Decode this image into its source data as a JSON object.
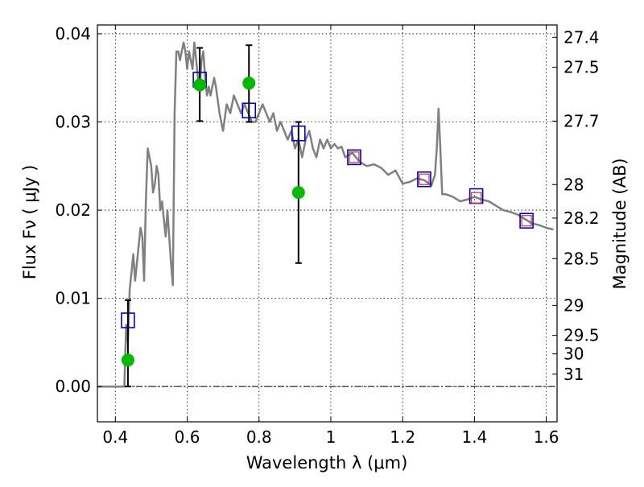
{
  "chart_data": {
    "type": "scatter",
    "title": "",
    "xlabel": "Wavelength  λ (μm)",
    "ylabel": "Flux  Fν  ( μJy )",
    "y2label": "Magnitude (AB)",
    "xlim": [
      0.35,
      1.63
    ],
    "ylim": [
      -0.004,
      0.041
    ],
    "grid": true,
    "x_ticks": [
      {
        "value": 0.4,
        "label": "0.4"
      },
      {
        "value": 0.6,
        "label": "0.6"
      },
      {
        "value": 0.8,
        "label": "0.8"
      },
      {
        "value": 1.0,
        "label": "1"
      },
      {
        "value": 1.2,
        "label": "1.2"
      },
      {
        "value": 1.4,
        "label": "1.4"
      },
      {
        "value": 1.6,
        "label": "1.6"
      }
    ],
    "y_ticks": [
      {
        "value": 0.0,
        "label": "0.00"
      },
      {
        "value": 0.01,
        "label": "0.01"
      },
      {
        "value": 0.02,
        "label": "0.02"
      },
      {
        "value": 0.03,
        "label": "0.03"
      },
      {
        "value": 0.04,
        "label": "0.04"
      }
    ],
    "y2_ticks": [
      {
        "flux": 0.0396,
        "label": "27.4"
      },
      {
        "flux": 0.0362,
        "label": "27.5"
      },
      {
        "flux": 0.0301,
        "label": "27.7"
      },
      {
        "flux": 0.0229,
        "label": "28"
      },
      {
        "flux": 0.0191,
        "label": "28.2"
      },
      {
        "flux": 0.0145,
        "label": "28.5"
      },
      {
        "flux": 0.0092,
        "label": "29"
      },
      {
        "flux": 0.0058,
        "label": "29.5"
      },
      {
        "flux": 0.0037,
        "label": "30"
      },
      {
        "flux": 0.0014,
        "label": "31"
      }
    ],
    "colors": {
      "model_line": "#808080",
      "observed_points": "#00bb00",
      "model_boxes": "#0000cc",
      "red_boxes": "#cc3333",
      "error_bars": "#000000",
      "zero_line": "#000000"
    },
    "series": [
      {
        "kind": "line",
        "x": [
          0.35,
          0.4,
          0.425,
          0.43,
          0.435,
          0.44,
          0.445,
          0.45,
          0.455,
          0.46,
          0.465,
          0.47,
          0.475,
          0.48,
          0.485,
          0.49,
          0.495,
          0.5,
          0.505,
          0.51,
          0.515,
          0.52,
          0.525,
          0.53,
          0.535,
          0.54,
          0.545,
          0.55,
          0.555,
          0.56,
          0.565,
          0.57,
          0.575,
          0.58,
          0.585,
          0.59,
          0.595,
          0.6,
          0.605,
          0.61,
          0.615,
          0.62,
          0.625,
          0.63,
          0.635,
          0.64,
          0.645,
          0.65,
          0.655,
          0.66,
          0.665,
          0.67,
          0.675,
          0.68,
          0.69,
          0.7,
          0.71,
          0.72,
          0.73,
          0.74,
          0.75,
          0.76,
          0.77,
          0.78,
          0.79,
          0.8,
          0.81,
          0.82,
          0.83,
          0.84,
          0.85,
          0.86,
          0.87,
          0.88,
          0.89,
          0.9,
          0.91,
          0.92,
          0.93,
          0.94,
          0.95,
          0.96,
          0.97,
          0.98,
          0.99,
          1.0,
          1.01,
          1.02,
          1.03,
          1.04,
          1.06,
          1.08,
          1.1,
          1.12,
          1.14,
          1.16,
          1.18,
          1.2,
          1.22,
          1.24,
          1.26,
          1.28,
          1.29,
          1.295,
          1.3,
          1.305,
          1.31,
          1.32,
          1.34,
          1.36,
          1.38,
          1.4,
          1.42,
          1.44,
          1.46,
          1.48,
          1.5,
          1.52,
          1.54,
          1.56,
          1.58,
          1.6,
          1.62
        ],
        "y": [
          0.0,
          0.0,
          0.0,
          0.007,
          0.005,
          0.011,
          0.013,
          0.015,
          0.012,
          0.014,
          0.016,
          0.018,
          0.017,
          0.012,
          0.021,
          0.027,
          0.026,
          0.025,
          0.022,
          0.023,
          0.025,
          0.024,
          0.02,
          0.021,
          0.019,
          0.017,
          0.02,
          0.017,
          0.014,
          0.0115,
          0.031,
          0.038,
          0.038,
          0.037,
          0.038,
          0.039,
          0.038,
          0.036,
          0.038,
          0.037,
          0.036,
          0.039,
          0.037,
          0.035,
          0.034,
          0.037,
          0.038,
          0.035,
          0.033,
          0.034,
          0.033,
          0.034,
          0.035,
          0.034,
          0.031,
          0.029,
          0.032,
          0.031,
          0.033,
          0.032,
          0.031,
          0.032,
          0.031,
          0.03,
          0.03,
          0.031,
          0.032,
          0.031,
          0.03,
          0.031,
          0.029,
          0.03,
          0.029,
          0.028,
          0.029,
          0.027,
          0.028,
          0.026,
          0.028,
          0.029,
          0.027,
          0.026,
          0.028,
          0.027,
          0.028,
          0.027,
          0.0275,
          0.027,
          0.0272,
          0.026,
          0.0265,
          0.0255,
          0.025,
          0.0252,
          0.0248,
          0.024,
          0.0245,
          0.023,
          0.0232,
          0.0236,
          0.0234,
          0.0228,
          0.024,
          0.027,
          0.0315,
          0.027,
          0.0218,
          0.0218,
          0.0215,
          0.021,
          0.0212,
          0.0215,
          0.0212,
          0.021,
          0.0205,
          0.02,
          0.0198,
          0.0195,
          0.019,
          0.0185,
          0.0183,
          0.018,
          0.0178
        ]
      },
      {
        "kind": "points",
        "x": [
          0.435,
          0.635,
          0.772,
          0.91
        ],
        "y": [
          0.003,
          0.0342,
          0.0344,
          0.022
        ],
        "err_low": [
          0.003,
          0.0041,
          0.0044,
          0.008
        ],
        "err_high": [
          0.0068,
          0.0042,
          0.0043,
          0.008
        ]
      },
      {
        "kind": "boxes",
        "x": [
          0.435,
          0.635,
          0.772,
          0.91,
          1.065,
          1.26,
          1.405,
          1.545
        ],
        "y": [
          0.0075,
          0.0348,
          0.0313,
          0.0287,
          0.026,
          0.0235,
          0.0216,
          0.0188
        ]
      },
      {
        "kind": "red_boxes",
        "x": [
          1.065,
          1.26,
          1.405,
          1.545
        ],
        "y": [
          0.026,
          0.0235,
          0.0214,
          0.0188
        ]
      }
    ]
  }
}
